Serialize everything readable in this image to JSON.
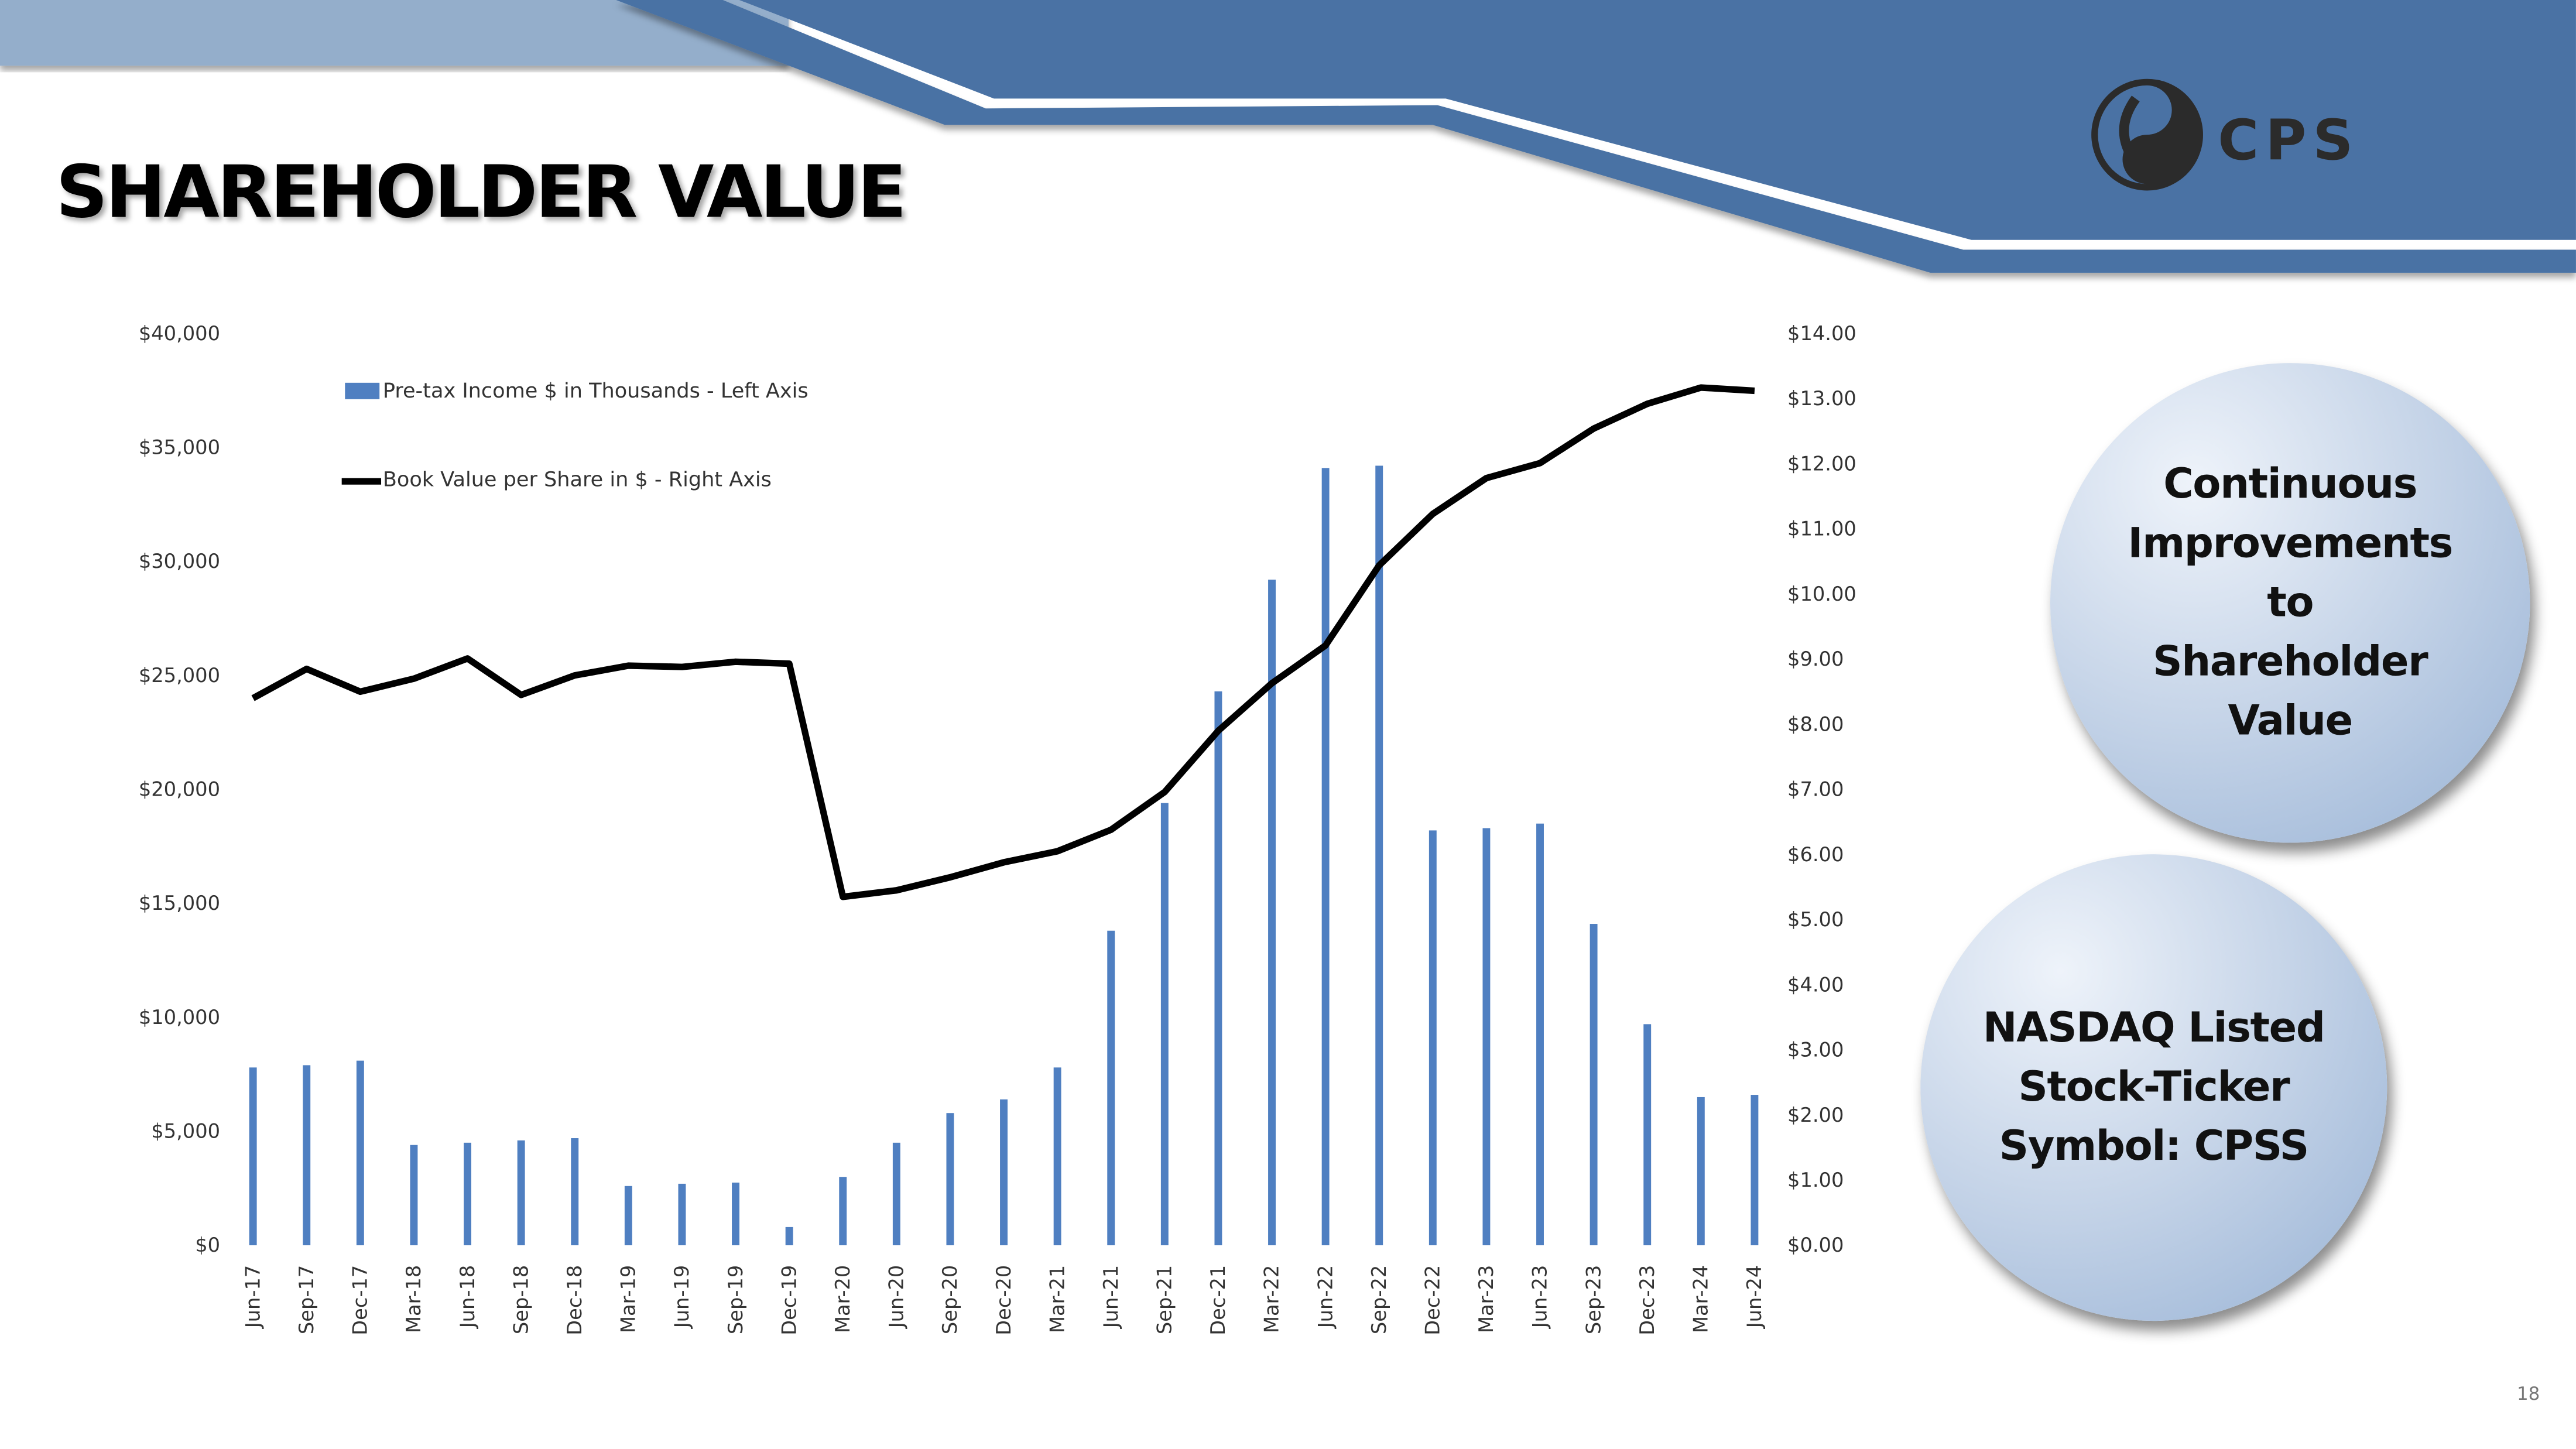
{
  "slide": {
    "title": "SHAREHOLDER VALUE",
    "page_number": "18",
    "logo_text": "CPS",
    "bubbles": [
      "Continuous Improvements to Shareholder Value",
      "NASDAQ Listed Stock-Ticker Symbol: CPSS"
    ],
    "colors": {
      "header_dark": "#4a72a4",
      "header_light": "#94aecb",
      "bar": "#4f7fc1",
      "line": "#000000"
    }
  },
  "chart_data": {
    "type": "bar+line",
    "title": "",
    "categories": [
      "Jun-17",
      "Sep-17",
      "Dec-17",
      "Mar-18",
      "Jun-18",
      "Sep-18",
      "Dec-18",
      "Mar-19",
      "Jun-19",
      "Sep-19",
      "Dec-19",
      "Mar-20",
      "Jun-20",
      "Sep-20",
      "Dec-20",
      "Mar-21",
      "Jun-21",
      "Sep-21",
      "Dec-21",
      "Mar-22",
      "Jun-22",
      "Sep-22",
      "Dec-22",
      "Mar-23",
      "Jun-23",
      "Sep-23",
      "Dec-23",
      "Mar-24",
      "Jun-24"
    ],
    "series": [
      {
        "name": "Pre-tax Income  $ in Thousands - Left Axis",
        "type": "bar",
        "axis": "left",
        "values": [
          7800,
          7900,
          8100,
          4400,
          4500,
          4600,
          4700,
          2600,
          2700,
          2750,
          800,
          3000,
          4500,
          5800,
          6400,
          7800,
          13800,
          19400,
          24300,
          29200,
          34100,
          34200,
          18200,
          18300,
          18500,
          14100,
          9700,
          6500,
          6600
        ]
      },
      {
        "name": "Book Value per Share in $ - Right Axis",
        "type": "line",
        "axis": "right",
        "values": [
          8.4,
          8.85,
          8.5,
          8.7,
          9.01,
          8.45,
          8.75,
          8.9,
          8.88,
          8.96,
          8.93,
          5.35,
          5.45,
          5.65,
          5.88,
          6.05,
          6.38,
          6.96,
          7.9,
          8.63,
          9.21,
          10.44,
          11.23,
          11.78,
          12.01,
          12.54,
          12.92,
          13.17,
          13.12
        ]
      }
    ],
    "left_axis": {
      "range": [
        0,
        40000
      ],
      "ticks": [
        "$0",
        "$5,000",
        "$10,000",
        "$15,000",
        "$20,000",
        "$25,000",
        "$30,000",
        "$35,000",
        "$40,000"
      ]
    },
    "right_axis": {
      "range": [
        0,
        14
      ],
      "ticks": [
        "$0.00",
        "$1.00",
        "$2.00",
        "$3.00",
        "$4.00",
        "$5.00",
        "$6.00",
        "$7.00",
        "$8.00",
        "$9.00",
        "$10.00",
        "$11.00",
        "$12.00",
        "$13.00",
        "$14.00"
      ]
    },
    "grid": false,
    "legend_placement": "top-left"
  }
}
